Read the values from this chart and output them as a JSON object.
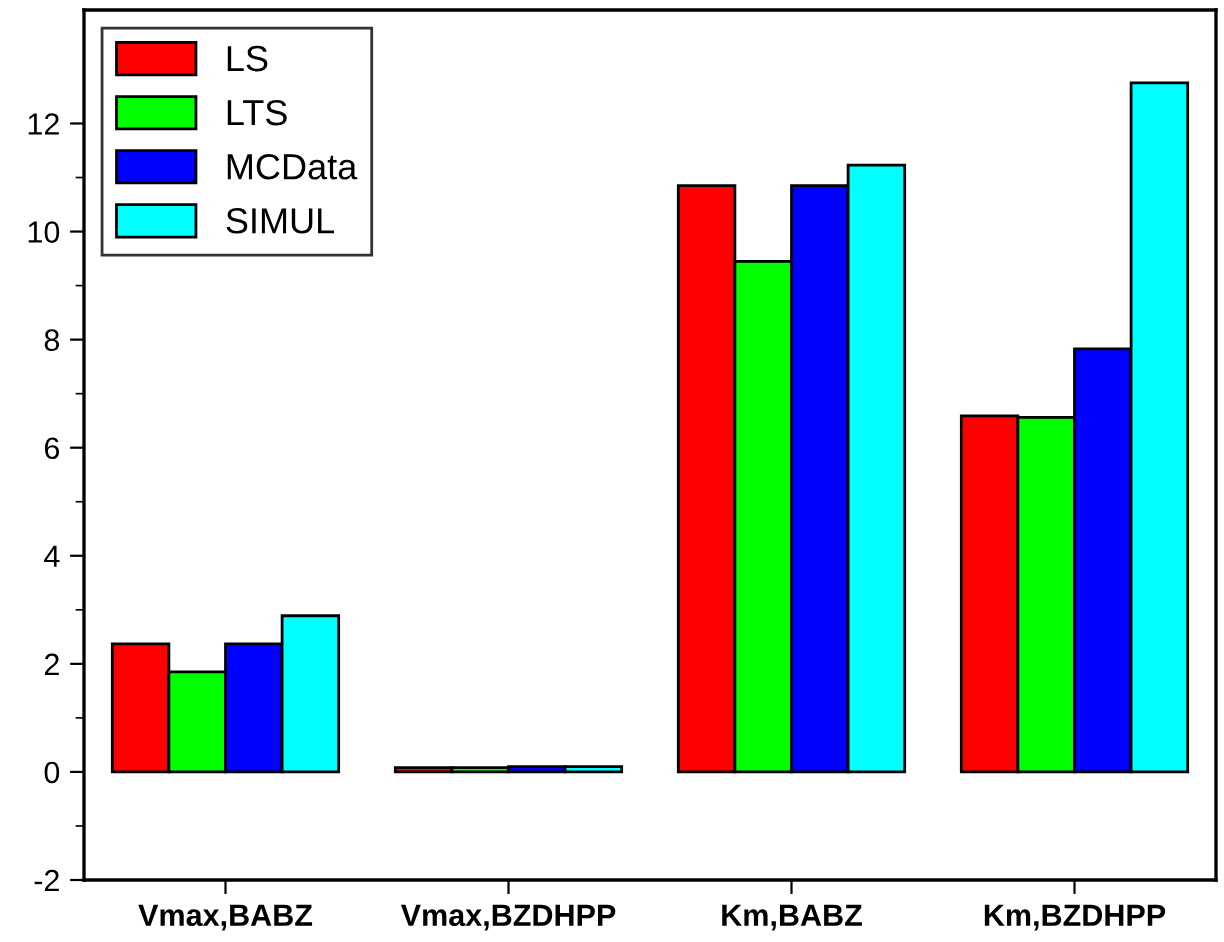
{
  "chart_data": {
    "type": "bar",
    "categories": [
      "Vmax,BABZ",
      "Vmax,BZDHPP",
      "Km,BABZ",
      "Km,BZDHPP"
    ],
    "series": [
      {
        "name": "LS",
        "color": "#ff0000",
        "values": [
          2.37,
          0.08,
          10.85,
          6.59
        ]
      },
      {
        "name": "LTS",
        "color": "#00ff00",
        "values": [
          1.85,
          0.08,
          9.45,
          6.56
        ]
      },
      {
        "name": "MCData",
        "color": "#0000ff",
        "values": [
          2.37,
          0.1,
          10.85,
          7.83
        ]
      },
      {
        "name": "SIMUL",
        "color": "#00ffff",
        "values": [
          2.89,
          0.1,
          11.23,
          12.75
        ]
      }
    ],
    "ylim": [
      -2,
      14.1
    ],
    "yticks": [
      -2,
      0,
      2,
      4,
      6,
      8,
      10,
      12
    ],
    "grid": false,
    "legend": "top left"
  }
}
